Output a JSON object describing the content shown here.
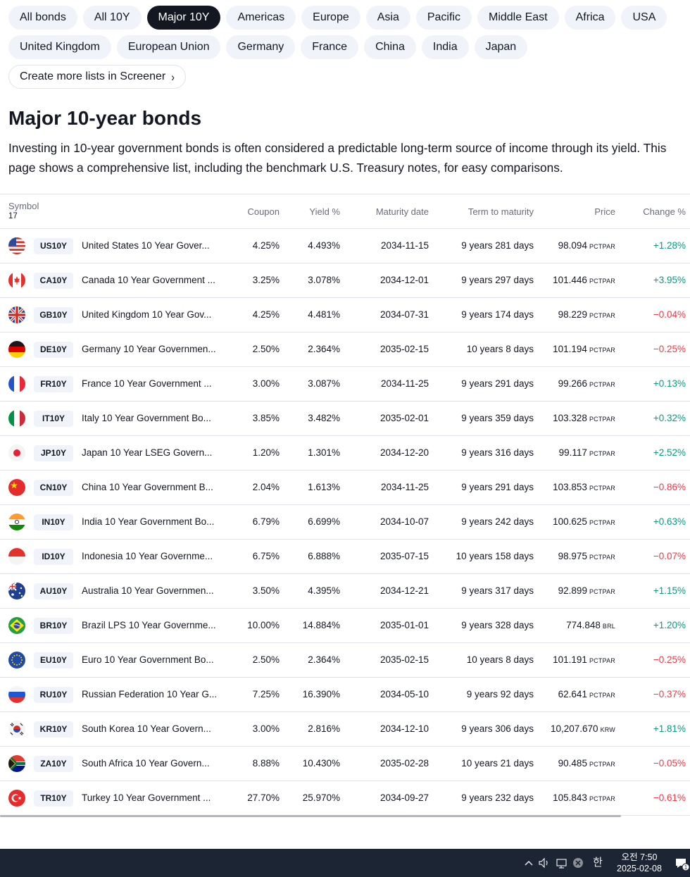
{
  "filters": {
    "row1": [
      "All bonds",
      "All 10Y",
      "Major 10Y",
      "Americas",
      "Europe",
      "Asia",
      "Pacific",
      "Middle East",
      "Africa",
      "USA"
    ],
    "row2": [
      "United Kingdom",
      "European Union",
      "Germany",
      "France",
      "China",
      "India",
      "Japan"
    ],
    "active": "Major 10Y",
    "screener_label": "Create more lists in Screener"
  },
  "page": {
    "title": "Major 10-year bonds",
    "description": "Investing in 10-year government bonds is often considered a predictable long-term source of income through its yield. This page shows a comprehensive list, including the benchmark U.S. Treasury notes, for easy comparisons."
  },
  "table": {
    "headers": {
      "symbol": "Symbol",
      "count": "17",
      "coupon": "Coupon",
      "yield": "Yield %",
      "maturity": "Maturity date",
      "term": "Term to maturity",
      "price": "Price",
      "change": "Change %"
    },
    "rows": [
      {
        "flag": "us-flag-icon",
        "ticker": "US10Y",
        "name": "United States 10 Year Gover...",
        "coupon": "4.25%",
        "yield": "4.493%",
        "maturity": "2034-11-15",
        "term": "9 years 281 days",
        "price": "98.094",
        "unit": "PCTPAR",
        "change": "+1.28%"
      },
      {
        "flag": "ca-flag-icon",
        "ticker": "CA10Y",
        "name": "Canada 10 Year Government ...",
        "coupon": "3.25%",
        "yield": "3.078%",
        "maturity": "2034-12-01",
        "term": "9 years 297 days",
        "price": "101.446",
        "unit": "PCTPAR",
        "change": "+3.95%"
      },
      {
        "flag": "gb-flag-icon",
        "ticker": "GB10Y",
        "name": "United Kingdom 10 Year Gov...",
        "coupon": "4.25%",
        "yield": "4.481%",
        "maturity": "2034-07-31",
        "term": "9 years 174 days",
        "price": "98.229",
        "unit": "PCTPAR",
        "change": "−0.04%"
      },
      {
        "flag": "de-flag-icon",
        "ticker": "DE10Y",
        "name": "Germany 10 Year Governmen...",
        "coupon": "2.50%",
        "yield": "2.364%",
        "maturity": "2035-02-15",
        "term": "10 years 8 days",
        "price": "101.194",
        "unit": "PCTPAR",
        "change": "−0.25%"
      },
      {
        "flag": "fr-flag-icon",
        "ticker": "FR10Y",
        "name": "France 10 Year Government ...",
        "coupon": "3.00%",
        "yield": "3.087%",
        "maturity": "2034-11-25",
        "term": "9 years 291 days",
        "price": "99.266",
        "unit": "PCTPAR",
        "change": "+0.13%"
      },
      {
        "flag": "it-flag-icon",
        "ticker": "IT10Y",
        "name": "Italy 10 Year Government Bo...",
        "coupon": "3.85%",
        "yield": "3.482%",
        "maturity": "2035-02-01",
        "term": "9 years 359 days",
        "price": "103.328",
        "unit": "PCTPAR",
        "change": "+0.32%"
      },
      {
        "flag": "jp-flag-icon",
        "ticker": "JP10Y",
        "name": "Japan 10 Year LSEG Govern...",
        "coupon": "1.20%",
        "yield": "1.301%",
        "maturity": "2034-12-20",
        "term": "9 years 316 days",
        "price": "99.117",
        "unit": "PCTPAR",
        "change": "+2.52%"
      },
      {
        "flag": "cn-flag-icon",
        "ticker": "CN10Y",
        "name": "China 10 Year Government B...",
        "coupon": "2.04%",
        "yield": "1.613%",
        "maturity": "2034-11-25",
        "term": "9 years 291 days",
        "price": "103.853",
        "unit": "PCTPAR",
        "change": "−0.86%"
      },
      {
        "flag": "in-flag-icon",
        "ticker": "IN10Y",
        "name": "India 10 Year Government Bo...",
        "coupon": "6.79%",
        "yield": "6.699%",
        "maturity": "2034-10-07",
        "term": "9 years 242 days",
        "price": "100.625",
        "unit": "PCTPAR",
        "change": "+0.63%"
      },
      {
        "flag": "id-flag-icon",
        "ticker": "ID10Y",
        "name": "Indonesia 10 Year Governme...",
        "coupon": "6.75%",
        "yield": "6.888%",
        "maturity": "2035-07-15",
        "term": "10 years 158 days",
        "price": "98.975",
        "unit": "PCTPAR",
        "change": "−0.07%"
      },
      {
        "flag": "au-flag-icon",
        "ticker": "AU10Y",
        "name": "Australia 10 Year Governmen...",
        "coupon": "3.50%",
        "yield": "4.395%",
        "maturity": "2034-12-21",
        "term": "9 years 317 days",
        "price": "92.899",
        "unit": "PCTPAR",
        "change": "+1.15%"
      },
      {
        "flag": "br-flag-icon",
        "ticker": "BR10Y",
        "name": "Brazil LPS 10 Year Governme...",
        "coupon": "10.00%",
        "yield": "14.884%",
        "maturity": "2035-01-01",
        "term": "9 years 328 days",
        "price": "774.848",
        "unit": "BRL",
        "change": "+1.20%"
      },
      {
        "flag": "eu-flag-icon",
        "ticker": "EU10Y",
        "name": "Euro 10 Year Government Bo...",
        "coupon": "2.50%",
        "yield": "2.364%",
        "maturity": "2035-02-15",
        "term": "10 years 8 days",
        "price": "101.191",
        "unit": "PCTPAR",
        "change": "−0.25%"
      },
      {
        "flag": "ru-flag-icon",
        "ticker": "RU10Y",
        "name": "Russian Federation 10 Year G...",
        "coupon": "7.25%",
        "yield": "16.390%",
        "maturity": "2034-05-10",
        "term": "9 years 92 days",
        "price": "62.641",
        "unit": "PCTPAR",
        "change": "−0.37%"
      },
      {
        "flag": "kr-flag-icon",
        "ticker": "KR10Y",
        "name": "South Korea 10 Year Govern...",
        "coupon": "3.00%",
        "yield": "2.816%",
        "maturity": "2034-12-10",
        "term": "9 years 306 days",
        "price": "10,207.670",
        "unit": "KRW",
        "change": "+1.81%"
      },
      {
        "flag": "za-flag-icon",
        "ticker": "ZA10Y",
        "name": "South Africa 10 Year Govern...",
        "coupon": "8.88%",
        "yield": "10.430%",
        "maturity": "2035-02-28",
        "term": "10 years 21 days",
        "price": "90.485",
        "unit": "PCTPAR",
        "change": "−0.05%"
      },
      {
        "flag": "tr-flag-icon",
        "ticker": "TR10Y",
        "name": "Turkey 10 Year Government ...",
        "coupon": "27.70%",
        "yield": "25.970%",
        "maturity": "2034-09-27",
        "term": "9 years 232 days",
        "price": "105.843",
        "unit": "PCTPAR",
        "change": "−0.61%"
      }
    ]
  },
  "colors": {
    "positive": "#089981",
    "negative": "#f23645",
    "chip_bg": "#f0f3fa",
    "chip_active_bg": "#131722"
  },
  "taskbar": {
    "time": "오전 7:50",
    "date": "2025-02-08",
    "ime": "한",
    "notification_count": "1",
    "icons": [
      "chevron-up-icon",
      "speaker-icon",
      "network-icon",
      "close-circle-icon"
    ]
  }
}
